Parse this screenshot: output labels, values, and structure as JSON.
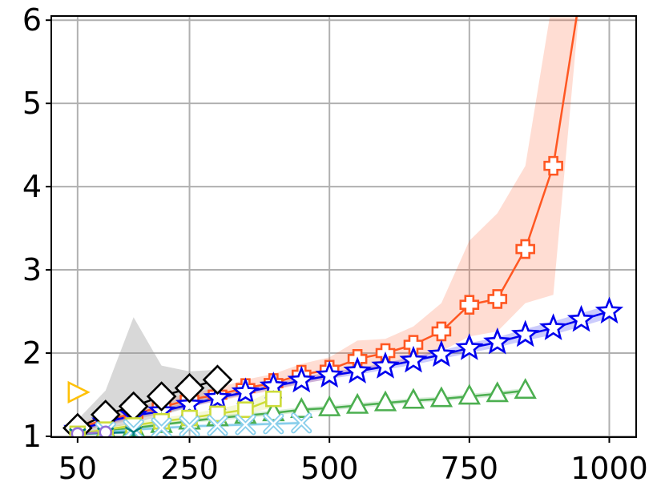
{
  "chart_data": {
    "type": "line",
    "title": "",
    "xlabel": "",
    "ylabel": "",
    "xlim": [
      3,
      1048
    ],
    "ylim": [
      0.99,
      6.05
    ],
    "grid": true,
    "x_ticks": [
      50,
      250,
      500,
      750,
      1000
    ],
    "x_tick_labels": [
      "50",
      "250",
      "500",
      "750",
      "1000"
    ],
    "y_ticks": [
      1,
      2,
      3,
      4,
      5,
      6
    ],
    "y_tick_labels": [
      "1",
      "2",
      "3",
      "4",
      "5",
      "6"
    ],
    "series": [
      {
        "color": "#ff5722",
        "marker": "plus",
        "x": [
          50,
          100,
          150,
          200,
          250,
          300,
          350,
          400,
          450,
          500,
          550,
          600,
          650,
          700,
          750,
          800,
          850,
          900,
          950
        ],
        "y": [
          1.1,
          1.2,
          1.27,
          1.35,
          1.44,
          1.5,
          1.58,
          1.64,
          1.74,
          1.8,
          1.93,
          2.0,
          2.1,
          2.26,
          2.58,
          2.65,
          3.25,
          4.25,
          6.4
        ],
        "band_low": [
          1.05,
          1.13,
          1.2,
          1.27,
          1.36,
          1.42,
          1.49,
          1.55,
          1.63,
          1.69,
          1.78,
          1.84,
          1.92,
          2.02,
          2.2,
          2.26,
          2.6,
          2.7,
          6.4
        ],
        "band_high": [
          1.15,
          1.27,
          1.34,
          1.43,
          1.52,
          1.58,
          1.68,
          1.75,
          1.87,
          1.95,
          2.15,
          2.17,
          2.32,
          2.6,
          3.35,
          3.68,
          4.25,
          6.3,
          6.4
        ]
      },
      {
        "color": "#0000ee",
        "marker": "star",
        "x": [
          50,
          100,
          150,
          200,
          250,
          300,
          350,
          400,
          450,
          500,
          550,
          600,
          650,
          700,
          750,
          800,
          850,
          900,
          950,
          1000
        ],
        "y": [
          1.08,
          1.17,
          1.25,
          1.3,
          1.38,
          1.46,
          1.53,
          1.6,
          1.67,
          1.73,
          1.78,
          1.84,
          1.91,
          1.98,
          2.06,
          2.13,
          2.22,
          2.3,
          2.4,
          2.5
        ],
        "band_low": [
          1.05,
          1.14,
          1.22,
          1.27,
          1.35,
          1.43,
          1.5,
          1.57,
          1.63,
          1.69,
          1.74,
          1.8,
          1.86,
          1.93,
          2.0,
          2.07,
          2.15,
          2.22,
          2.32,
          2.42
        ],
        "band_high": [
          1.11,
          1.2,
          1.28,
          1.33,
          1.41,
          1.49,
          1.56,
          1.63,
          1.71,
          1.77,
          1.82,
          1.88,
          1.96,
          2.03,
          2.12,
          2.19,
          2.29,
          2.38,
          2.48,
          2.58
        ]
      },
      {
        "color": "#4caf50",
        "marker": "triangle-up",
        "x": [
          50,
          100,
          150,
          200,
          250,
          300,
          350,
          400,
          450,
          500,
          550,
          600,
          650,
          700,
          750,
          800,
          850
        ],
        "y": [
          1.02,
          1.06,
          1.1,
          1.14,
          1.18,
          1.22,
          1.25,
          1.28,
          1.32,
          1.34,
          1.37,
          1.4,
          1.43,
          1.45,
          1.48,
          1.51,
          1.55
        ],
        "band_low": [
          1.0,
          1.04,
          1.08,
          1.12,
          1.16,
          1.19,
          1.22,
          1.25,
          1.29,
          1.31,
          1.34,
          1.37,
          1.4,
          1.42,
          1.45,
          1.48,
          1.52
        ],
        "band_high": [
          1.04,
          1.08,
          1.12,
          1.16,
          1.2,
          1.25,
          1.28,
          1.31,
          1.35,
          1.37,
          1.4,
          1.43,
          1.46,
          1.48,
          1.51,
          1.54,
          1.58
        ]
      },
      {
        "color": "#000000",
        "marker": "diamond",
        "x": [
          50,
          100,
          150,
          200,
          250,
          300
        ],
        "y": [
          1.1,
          1.26,
          1.36,
          1.48,
          1.58,
          1.68
        ],
        "band_low": [
          1.02,
          1.1,
          1.15,
          1.25,
          1.35,
          1.45
        ],
        "band_high": [
          1.2,
          1.55,
          2.43,
          1.85,
          1.78,
          1.8
        ],
        "band_color": "#999999"
      },
      {
        "color": "#cddc39",
        "marker": "square",
        "x": [
          50,
          100,
          150,
          200,
          250,
          300,
          350,
          400
        ],
        "y": [
          1.03,
          1.08,
          1.13,
          1.18,
          1.22,
          1.27,
          1.32,
          1.45
        ],
        "band_low": [
          1.01,
          1.05,
          1.1,
          1.14,
          1.18,
          1.22,
          1.26,
          1.35
        ],
        "band_high": [
          1.05,
          1.11,
          1.16,
          1.22,
          1.27,
          1.33,
          1.4,
          1.55
        ]
      },
      {
        "color": "#87ceeb",
        "marker": "x",
        "x": [
          100,
          150,
          200,
          250,
          300,
          350,
          400,
          450
        ],
        "y": [
          1.05,
          1.08,
          1.1,
          1.12,
          1.13,
          1.14,
          1.15,
          1.16
        ],
        "band_low": [
          1.03,
          1.06,
          1.08,
          1.1,
          1.11,
          1.12,
          1.13,
          1.14
        ],
        "band_high": [
          1.07,
          1.1,
          1.12,
          1.14,
          1.15,
          1.16,
          1.17,
          1.18
        ]
      },
      {
        "color": "#008080",
        "marker": "tri-down",
        "x": [
          50,
          100,
          150
        ],
        "y": [
          1.03,
          1.04,
          1.05
        ],
        "band_low": [
          1.01,
          1.02,
          1.03
        ],
        "band_high": [
          1.05,
          1.06,
          1.07
        ]
      },
      {
        "color": "#9370db",
        "marker": "circle",
        "x": [
          50,
          100
        ],
        "y": [
          1.03,
          1.05
        ],
        "band_low": [
          1.01,
          1.03
        ],
        "band_high": [
          1.05,
          1.07
        ]
      },
      {
        "color": "#ffc107",
        "marker": "triangle-right",
        "x": [
          50
        ],
        "y": [
          1.53
        ],
        "band_low": [
          1.53
        ],
        "band_high": [
          1.53
        ]
      }
    ]
  }
}
